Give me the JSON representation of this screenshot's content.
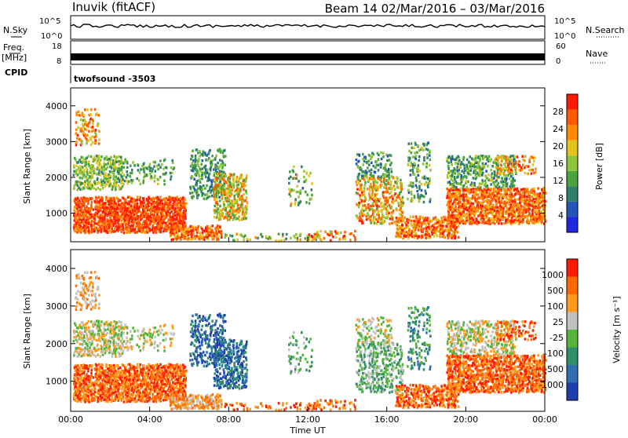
{
  "header": {
    "station": "Inuvik (fitACF)",
    "beam_and_dates": "Beam 14  02/Mar/2016 – 03/Mar/2016"
  },
  "summary_panels": {
    "nsky_label": "N.Sky",
    "nsky_ticks": [
      "10^5",
      "10^0"
    ],
    "nsearch_label": "N.Search",
    "nsearch_ticks": [
      "10^5",
      "10^0"
    ],
    "freq_label": "Freq.",
    "freq_unit": "[MHz]",
    "freq_ticks": [
      "18",
      "8"
    ],
    "nave_label": "Nave",
    "nave_ticks": [
      "60",
      "0"
    ],
    "cpid_label": "CPID",
    "cpid_value": "twofsound  -3503"
  },
  "colors": {
    "power_scale": [
      "#1f28e0",
      "#2356b6",
      "#2f7f6a",
      "#4aa33c",
      "#8ec43a",
      "#e0c41c",
      "#ff8c00",
      "#ff5a00",
      "#ff1a00"
    ],
    "velocity_scale": [
      "#1f3fb0",
      "#2f6eb0",
      "#2f8f6a",
      "#57b33c",
      "#c0c0c0",
      "#ff9a1a",
      "#ff6a00",
      "#ff1a00"
    ],
    "line": "#000000"
  },
  "chart_data": [
    {
      "type": "heatmap",
      "name": "power",
      "ylabel": "Slant Range [km]",
      "yticks": [
        "1000",
        "2000",
        "3000",
        "4000"
      ],
      "ylim": [
        200,
        4500
      ],
      "xticks": [
        "00:00",
        "04:00",
        "08:00",
        "12:00",
        "16:00",
        "20:00",
        "00:00"
      ],
      "xlim_hours": [
        0,
        24
      ],
      "colorbar_label": "Power [dB]",
      "colorbar_ticks": [
        "28",
        "24",
        "20",
        "16",
        "12",
        "8",
        "4"
      ],
      "colorbar_range": [
        0,
        30
      ]
    },
    {
      "type": "heatmap",
      "name": "velocity",
      "ylabel": "Slant Range [km]",
      "yticks": [
        "1000",
        "2000",
        "3000",
        "4000"
      ],
      "ylim": [
        200,
        4500
      ],
      "xticks": [
        "00:00",
        "04:00",
        "08:00",
        "12:00",
        "16:00",
        "20:00",
        "00:00"
      ],
      "xlabel": "Time UT",
      "xlim_hours": [
        0,
        24
      ],
      "colorbar_label": "Velocity [m s⁻¹]",
      "colorbar_ticks": [
        "1000",
        "500",
        "100",
        "25",
        "-25",
        "-100",
        "-500",
        "-1000"
      ]
    }
  ],
  "scatter_regions": [
    {
      "t0": 0.1,
      "t1": 5.8,
      "r0": 450,
      "r1": 1450,
      "density": 0.85,
      "pw": 26,
      "pspread": 5,
      "vel": 6
    },
    {
      "t0": 0.1,
      "t1": 2.6,
      "r0": 1650,
      "r1": 2600,
      "density": 0.55,
      "pw": 14,
      "pspread": 6,
      "vel": 4
    },
    {
      "t0": 0.2,
      "t1": 1.4,
      "r0": 2900,
      "r1": 3900,
      "density": 0.4,
      "pw": 22,
      "pspread": 6,
      "vel": 5
    },
    {
      "t0": 2.0,
      "t1": 5.2,
      "r0": 1800,
      "r1": 2500,
      "density": 0.25,
      "pw": 12,
      "pspread": 5,
      "vel": 4
    },
    {
      "t0": 5.0,
      "t1": 7.6,
      "r0": 250,
      "r1": 650,
      "density": 0.7,
      "pw": 24,
      "pspread": 6,
      "vel": 5
    },
    {
      "t0": 6.0,
      "t1": 7.8,
      "r0": 1400,
      "r1": 2800,
      "density": 0.45,
      "pw": 10,
      "pspread": 5,
      "vel": 1
    },
    {
      "t0": 7.2,
      "t1": 8.9,
      "r0": 800,
      "r1": 2100,
      "density": 0.6,
      "pw": 18,
      "pspread": 8,
      "vel": 1
    },
    {
      "t0": 7.6,
      "t1": 12.5,
      "r0": 220,
      "r1": 420,
      "density": 0.3,
      "pw": 14,
      "pspread": 8,
      "vel": 6
    },
    {
      "t0": 11.0,
      "t1": 12.2,
      "r0": 1200,
      "r1": 2300,
      "density": 0.2,
      "pw": 14,
      "pspread": 8,
      "vel": 3
    },
    {
      "t0": 12.0,
      "t1": 14.5,
      "r0": 230,
      "r1": 500,
      "density": 0.4,
      "pw": 22,
      "pspread": 6,
      "vel": 6
    },
    {
      "t0": 14.4,
      "t1": 16.8,
      "r0": 700,
      "r1": 2000,
      "density": 0.5,
      "pw": 20,
      "pspread": 8,
      "vel": 3
    },
    {
      "t0": 14.4,
      "t1": 16.2,
      "r0": 2000,
      "r1": 2700,
      "density": 0.35,
      "pw": 10,
      "pspread": 5,
      "vel": 4
    },
    {
      "t0": 16.4,
      "t1": 19.6,
      "r0": 300,
      "r1": 900,
      "density": 0.7,
      "pw": 24,
      "pspread": 6,
      "vel": 6
    },
    {
      "t0": 17.0,
      "t1": 18.2,
      "r0": 1300,
      "r1": 3000,
      "density": 0.3,
      "pw": 12,
      "pspread": 6,
      "vel": 2
    },
    {
      "t0": 19.0,
      "t1": 24.0,
      "r0": 700,
      "r1": 1700,
      "density": 0.8,
      "pw": 24,
      "pspread": 6,
      "vel": 6
    },
    {
      "t0": 19.0,
      "t1": 22.5,
      "r0": 1700,
      "r1": 2600,
      "density": 0.5,
      "pw": 12,
      "pspread": 6,
      "vel": 4
    },
    {
      "t0": 21.5,
      "t1": 23.5,
      "r0": 2100,
      "r1": 2600,
      "density": 0.4,
      "pw": 22,
      "pspread": 6,
      "vel": 6
    }
  ]
}
